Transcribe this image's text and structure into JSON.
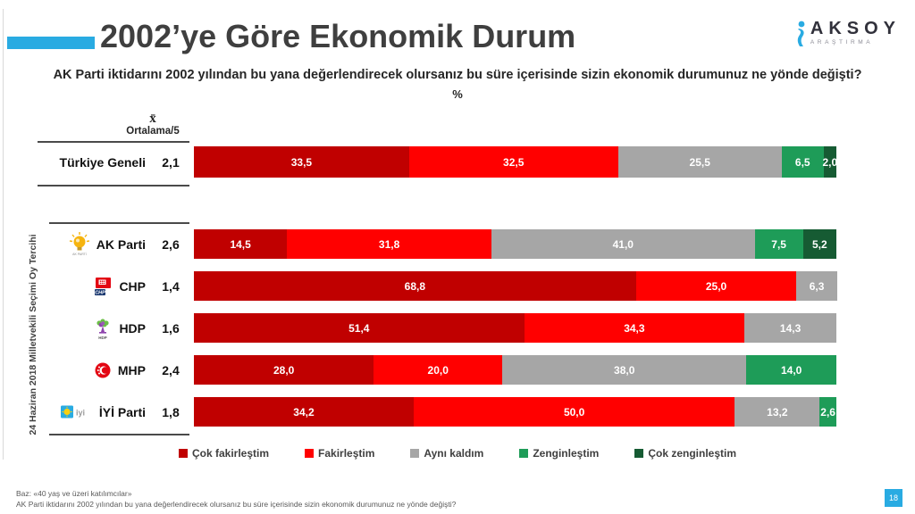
{
  "header": {
    "title": "2002’ye Göre Ekonomik Durum",
    "subtitle": "AK Parti iktidarını 2002 yılından bu yana değerlendirecek olursanız bu süre içerisinde sizin ekonomik durumunuz ne yönde değişti?",
    "unit_label": "%",
    "accent_color": "#29ABE2"
  },
  "logo": {
    "name": "AKSOY",
    "tagline": "ARAŞTIRMA",
    "icon_color": "#29ABE2"
  },
  "axis": {
    "mean_symbol": "x̄",
    "mean_label": "Ortalama/5"
  },
  "group_label": "24 Haziran 2018 Milletvekili Seçimi Oy Tercihi",
  "chart_data": {
    "type": "bar",
    "orientation": "horizontal",
    "stacked": true,
    "xlim": [
      0,
      100
    ],
    "legend_position": "bottom",
    "categories": [
      "Çok fakirleştim",
      "Fakirleştim",
      "Aynı kaldım",
      "Zenginleştim",
      "Çok zenginleştim"
    ],
    "colors": [
      "#C00000",
      "#FF0000",
      "#A6A6A6",
      "#1E9C58",
      "#165B33"
    ],
    "rows": [
      {
        "label": "Türkiye Geneli",
        "mean": "2,1",
        "logo": "",
        "values": [
          33.5,
          32.5,
          25.5,
          6.5,
          2.0
        ],
        "value_labels": [
          "33,5",
          "32,5",
          "25,5",
          "6,5",
          "2,0"
        ]
      },
      {
        "label": "AK Parti",
        "mean": "2,6",
        "logo": "akparti-logo",
        "values": [
          14.5,
          31.8,
          41.0,
          7.5,
          5.2
        ],
        "value_labels": [
          "14,5",
          "31,8",
          "41,0",
          "7,5",
          "5,2"
        ]
      },
      {
        "label": "CHP",
        "mean": "1,4",
        "logo": "chp-logo",
        "values": [
          68.8,
          25.0,
          6.3,
          0,
          0
        ],
        "value_labels": [
          "68,8",
          "25,0",
          "6,3",
          "",
          ""
        ]
      },
      {
        "label": "HDP",
        "mean": "1,6",
        "logo": "hdp-logo",
        "values": [
          51.4,
          34.3,
          14.3,
          0,
          0
        ],
        "value_labels": [
          "51,4",
          "34,3",
          "14,3",
          "",
          ""
        ]
      },
      {
        "label": "MHP",
        "mean": "2,4",
        "logo": "mhp-logo",
        "values": [
          28.0,
          20.0,
          38.0,
          14.0,
          0
        ],
        "value_labels": [
          "28,0",
          "20,0",
          "38,0",
          "14,0",
          ""
        ]
      },
      {
        "label": "İYİ Parti",
        "mean": "1,8",
        "logo": "iyi-logo",
        "values": [
          34.2,
          50.0,
          13.2,
          2.6,
          0
        ],
        "value_labels": [
          "34,2",
          "50,0",
          "13,2",
          "2,6",
          ""
        ]
      }
    ]
  },
  "footer": {
    "line1": "Baz: «40 yaş ve üzeri katılımcılar»",
    "line2": "AK Parti iktidarını 2002 yılından bu yana değerlendirecek olursanız bu süre içerisinde sizin ekonomik durumunuz ne yönde değişti?",
    "page_number": "18"
  }
}
